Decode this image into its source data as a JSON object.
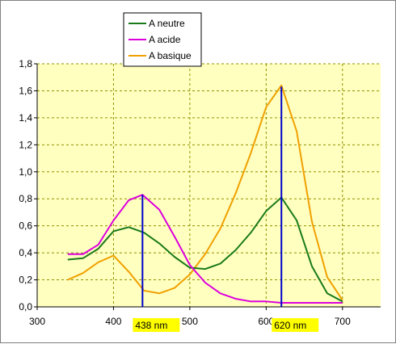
{
  "chart_data": {
    "type": "line",
    "title": "",
    "xlabel": "",
    "ylabel": "",
    "xlim": [
      300,
      750
    ],
    "ylim": [
      0,
      1.8
    ],
    "xticks": [
      300,
      400,
      500,
      600,
      700
    ],
    "xtick_labels": [
      "300",
      "400",
      "500",
      "600",
      "700"
    ],
    "yticks": [
      0,
      0.2,
      0.4,
      0.6,
      0.8,
      1.0,
      1.2,
      1.4,
      1.6,
      1.8
    ],
    "ytick_labels": [
      "0,0",
      "0,2",
      "0,4",
      "0,6",
      "0,8",
      "1,0",
      "1,2",
      "1,4",
      "1,6",
      "1,8"
    ],
    "grid": true,
    "legend_position": "top-left",
    "colors": {
      "plot_background": "#ffffc0",
      "grid": "#909000",
      "marker_line": "#0000cc",
      "annotation_background": "#ffff00"
    },
    "series": [
      {
        "name": "A neutre",
        "color": "#1a7a1a",
        "x": [
          340,
          360,
          380,
          400,
          420,
          440,
          460,
          480,
          500,
          520,
          540,
          560,
          580,
          600,
          620,
          640,
          660,
          680,
          700
        ],
        "values": [
          0.35,
          0.36,
          0.43,
          0.56,
          0.59,
          0.55,
          0.47,
          0.37,
          0.29,
          0.28,
          0.32,
          0.42,
          0.55,
          0.71,
          0.81,
          0.64,
          0.3,
          0.1,
          0.04
        ]
      },
      {
        "name": "A acide",
        "color": "#dd00dd",
        "x": [
          340,
          360,
          380,
          400,
          420,
          438,
          460,
          480,
          500,
          520,
          540,
          560,
          580,
          600,
          620,
          640,
          660,
          680,
          700
        ],
        "values": [
          0.39,
          0.39,
          0.46,
          0.64,
          0.79,
          0.83,
          0.72,
          0.52,
          0.31,
          0.18,
          0.1,
          0.06,
          0.04,
          0.04,
          0.03,
          0.03,
          0.03,
          0.03,
          0.03
        ]
      },
      {
        "name": "A basique",
        "color": "#f0a000",
        "x": [
          340,
          360,
          380,
          400,
          420,
          440,
          460,
          480,
          500,
          520,
          540,
          560,
          580,
          600,
          620,
          640,
          660,
          680,
          700
        ],
        "values": [
          0.2,
          0.25,
          0.33,
          0.38,
          0.26,
          0.12,
          0.1,
          0.14,
          0.24,
          0.39,
          0.58,
          0.84,
          1.14,
          1.48,
          1.64,
          1.3,
          0.63,
          0.22,
          0.05
        ]
      }
    ],
    "markers": [
      {
        "x": 438,
        "y": 0.83,
        "label": "438 nm"
      },
      {
        "x": 620,
        "y": 1.63,
        "label": "620 nm"
      }
    ]
  }
}
